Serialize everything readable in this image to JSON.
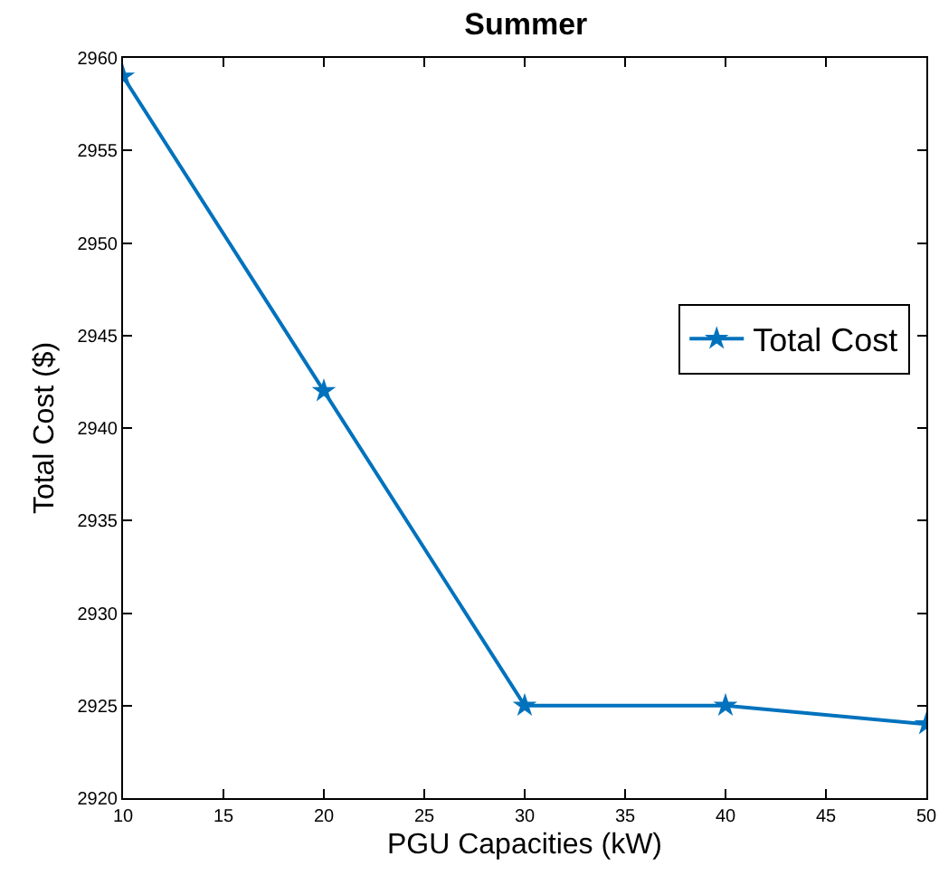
{
  "chart_data": {
    "type": "line",
    "title": "Summer",
    "xlabel": "PGU Capacities (kW)",
    "ylabel": "Total Cost ($)",
    "x": [
      10,
      20,
      30,
      40,
      50
    ],
    "series": [
      {
        "name": "Total Cost",
        "color": "#0072bd",
        "values": [
          2959,
          2942,
          2925,
          2925,
          2924
        ]
      }
    ],
    "xlim": [
      10,
      50
    ],
    "xticks": [
      10,
      15,
      20,
      25,
      30,
      35,
      40,
      45,
      50
    ],
    "ylim": [
      2920,
      2960
    ],
    "yticks": [
      2920,
      2925,
      2930,
      2935,
      2940,
      2945,
      2950,
      2955,
      2960
    ],
    "grid": false,
    "legend": "right",
    "marker": "star",
    "line_style": "solid"
  }
}
